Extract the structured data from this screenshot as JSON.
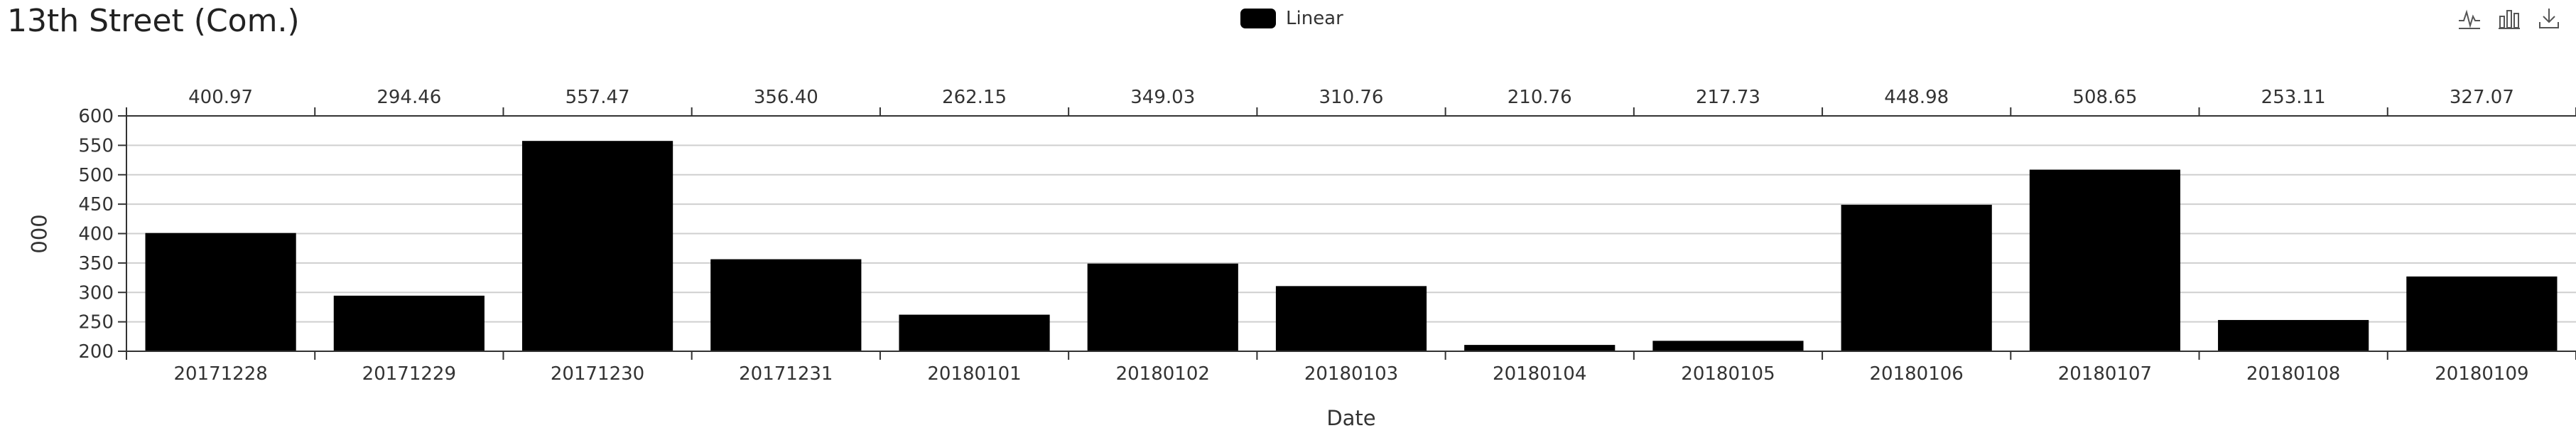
{
  "chart_data": {
    "type": "bar",
    "title": "13th Street (Com.)",
    "xlabel": "Date",
    "ylabel": "000",
    "ylim": [
      200,
      600
    ],
    "yticks": [
      200,
      250,
      300,
      350,
      400,
      450,
      500,
      550,
      600
    ],
    "grid": true,
    "legend_position": "top-center",
    "categories": [
      "20171228",
      "20171229",
      "20171230",
      "20171231",
      "20180101",
      "20180102",
      "20180103",
      "20180104",
      "20180105",
      "20180106",
      "20180107",
      "20180108",
      "20180109"
    ],
    "series": [
      {
        "name": "Linear",
        "color": "#000000",
        "values": [
          400.97,
          294.46,
          557.47,
          356.4,
          262.15,
          349.03,
          310.76,
          210.76,
          217.73,
          448.98,
          508.65,
          253.11,
          327.07
        ],
        "labels": [
          "400.97",
          "294.46",
          "557.47",
          "356.40",
          "262.15",
          "349.03",
          "310.76",
          "210.76",
          "217.73",
          "448.98",
          "508.65",
          "253.11",
          "327.07"
        ]
      }
    ]
  },
  "toolbar": {
    "icons": [
      "line-chart-icon",
      "bar-chart-icon",
      "download-icon"
    ]
  }
}
